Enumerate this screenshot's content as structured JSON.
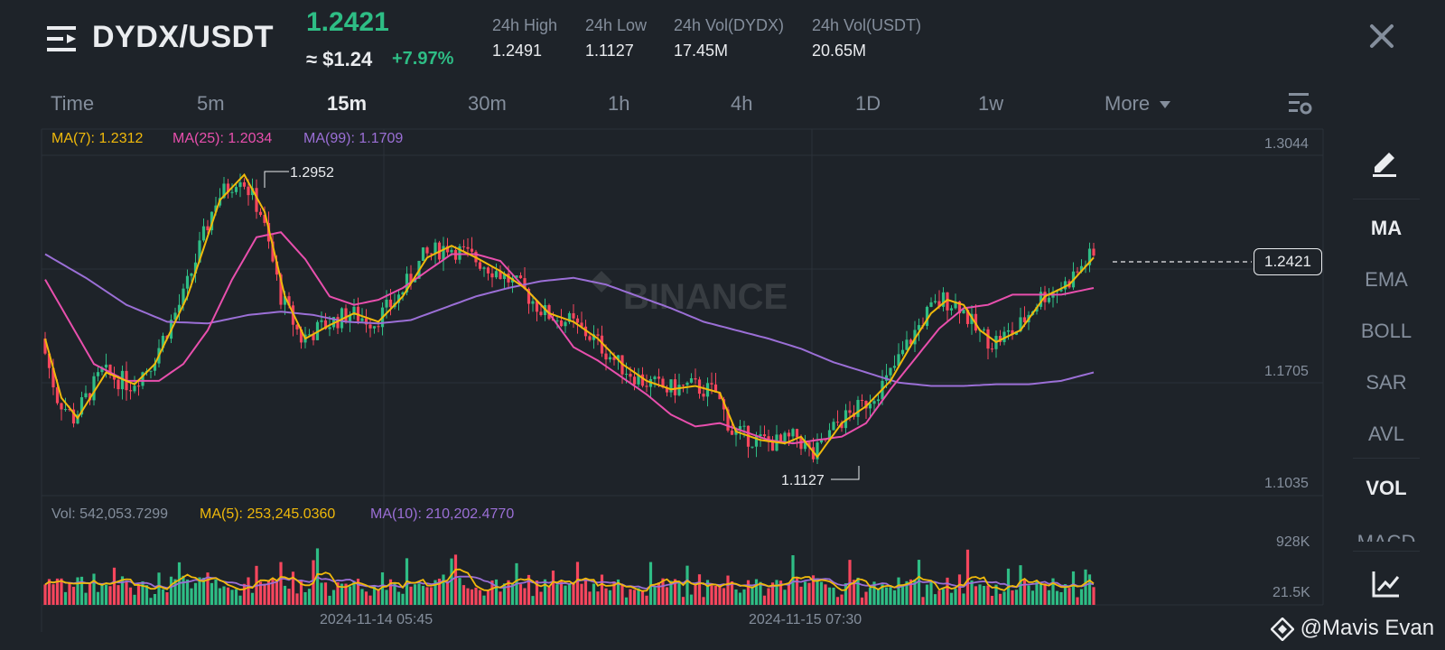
{
  "header": {
    "pair": "DYDX/USDT",
    "last_price": "1.2421",
    "usd_price": "≈ $1.24",
    "change_pct": "+7.97%",
    "stats": [
      {
        "label": "24h High",
        "value": "1.2491"
      },
      {
        "label": "24h Low",
        "value": "1.1127"
      },
      {
        "label": "24h Vol(DYDX)",
        "value": "17.45M"
      },
      {
        "label": "24h Vol(USDT)",
        "value": "20.65M"
      }
    ],
    "close_icon": "close-icon",
    "menu_icon": "menu-icon"
  },
  "timeframes": [
    "Time",
    "5m",
    "15m",
    "30m",
    "1h",
    "4h",
    "1D",
    "1w",
    "More"
  ],
  "active_timeframe": "15m",
  "legend_main": {
    "ma7": "MA(7): 1.2312",
    "ma25": "MA(25): 1.2034",
    "ma99": "MA(99): 1.1709"
  },
  "legend_volume": {
    "vol": "Vol: 542,053.7299",
    "ma5": "MA(5): 253,245.0360",
    "ma10": "MA(10): 210,202.4770"
  },
  "price_axis": [
    "1.3044",
    "1.1705",
    "1.1035"
  ],
  "volume_axis": [
    "928K",
    "21.5K"
  ],
  "time_axis": [
    "2024-11-14 05:45",
    "2024-11-15 07:30"
  ],
  "annotations": {
    "high": "1.2952",
    "low": "1.1127",
    "current": "1.2421"
  },
  "watermark": "BINANCE",
  "sidebar": [
    "MA",
    "EMA",
    "BOLL",
    "SAR",
    "AVL",
    "VOL",
    "MACD"
  ],
  "sidebar_active": [
    "MA",
    "VOL"
  ],
  "credit": "@Mavis Evan",
  "colors": {
    "up": "#2ebd85",
    "down": "#f6465d",
    "ma7": "#f0b90b",
    "ma25": "#e84fad",
    "ma99": "#9b6fd6",
    "background": "#1e2329"
  },
  "chart_data": {
    "type": "candlestick",
    "x_range": [
      "2024-11-13 22:45",
      "2024-11-15 22:45"
    ],
    "ylim": [
      1.1035,
      1.3044
    ],
    "ma7_points": [
      [
        0,
        1.19
      ],
      [
        4,
        1.155
      ],
      [
        8,
        1.143
      ],
      [
        15,
        1.17
      ],
      [
        22,
        1.163
      ],
      [
        27,
        1.175
      ],
      [
        35,
        1.215
      ],
      [
        43,
        1.272
      ],
      [
        49,
        1.287
      ],
      [
        54,
        1.265
      ],
      [
        59,
        1.215
      ],
      [
        64,
        1.19
      ],
      [
        70,
        1.198
      ],
      [
        76,
        1.205
      ],
      [
        82,
        1.2
      ],
      [
        88,
        1.215
      ],
      [
        94,
        1.238
      ],
      [
        100,
        1.245
      ],
      [
        106,
        1.238
      ],
      [
        112,
        1.23
      ],
      [
        118,
        1.22
      ],
      [
        124,
        1.205
      ],
      [
        130,
        1.2
      ],
      [
        136,
        1.19
      ],
      [
        142,
        1.175
      ],
      [
        148,
        1.165
      ],
      [
        154,
        1.16
      ],
      [
        160,
        1.162
      ],
      [
        166,
        1.158
      ],
      [
        170,
        1.135
      ],
      [
        176,
        1.13
      ],
      [
        182,
        1.128
      ],
      [
        186,
        1.132
      ],
      [
        190,
        1.12
      ],
      [
        196,
        1.14
      ],
      [
        202,
        1.15
      ],
      [
        208,
        1.165
      ],
      [
        214,
        1.19
      ],
      [
        218,
        1.205
      ],
      [
        222,
        1.213
      ],
      [
        226,
        1.21
      ],
      [
        230,
        1.195
      ],
      [
        234,
        1.188
      ],
      [
        240,
        1.195
      ],
      [
        246,
        1.215
      ],
      [
        252,
        1.222
      ],
      [
        258,
        1.238
      ]
    ],
    "ma25_points": [
      [
        0,
        1.225
      ],
      [
        6,
        1.2
      ],
      [
        12,
        1.175
      ],
      [
        20,
        1.165
      ],
      [
        28,
        1.165
      ],
      [
        34,
        1.175
      ],
      [
        40,
        1.195
      ],
      [
        46,
        1.225
      ],
      [
        52,
        1.25
      ],
      [
        58,
        1.253
      ],
      [
        64,
        1.237
      ],
      [
        70,
        1.215
      ],
      [
        76,
        1.21
      ],
      [
        82,
        1.213
      ],
      [
        88,
        1.22
      ],
      [
        94,
        1.23
      ],
      [
        100,
        1.24
      ],
      [
        106,
        1.24
      ],
      [
        112,
        1.236
      ],
      [
        118,
        1.22
      ],
      [
        124,
        1.205
      ],
      [
        130,
        1.185
      ],
      [
        136,
        1.177
      ],
      [
        142,
        1.167
      ],
      [
        148,
        1.157
      ],
      [
        154,
        1.145
      ],
      [
        160,
        1.138
      ],
      [
        166,
        1.14
      ],
      [
        172,
        1.135
      ],
      [
        178,
        1.13
      ],
      [
        184,
        1.128
      ],
      [
        190,
        1.13
      ],
      [
        196,
        1.132
      ],
      [
        202,
        1.14
      ],
      [
        208,
        1.16
      ],
      [
        214,
        1.178
      ],
      [
        220,
        1.196
      ],
      [
        226,
        1.208
      ],
      [
        232,
        1.21
      ],
      [
        238,
        1.216
      ],
      [
        244,
        1.216
      ],
      [
        250,
        1.216
      ],
      [
        258,
        1.22
      ]
    ],
    "ma99_points": [
      [
        0,
        1.24
      ],
      [
        10,
        1.226
      ],
      [
        20,
        1.21
      ],
      [
        30,
        1.2
      ],
      [
        40,
        1.199
      ],
      [
        50,
        1.204
      ],
      [
        58,
        1.206
      ],
      [
        66,
        1.204
      ],
      [
        74,
        1.2
      ],
      [
        82,
        1.199
      ],
      [
        90,
        1.201
      ],
      [
        98,
        1.208
      ],
      [
        106,
        1.215
      ],
      [
        114,
        1.22
      ],
      [
        122,
        1.224
      ],
      [
        130,
        1.226
      ],
      [
        138,
        1.222
      ],
      [
        146,
        1.215
      ],
      [
        154,
        1.208
      ],
      [
        162,
        1.2
      ],
      [
        170,
        1.195
      ],
      [
        178,
        1.19
      ],
      [
        186,
        1.184
      ],
      [
        194,
        1.176
      ],
      [
        202,
        1.17
      ],
      [
        210,
        1.164
      ],
      [
        218,
        1.162
      ],
      [
        226,
        1.162
      ],
      [
        234,
        1.163
      ],
      [
        242,
        1.163
      ],
      [
        250,
        1.165
      ],
      [
        258,
        1.17
      ]
    ]
  }
}
